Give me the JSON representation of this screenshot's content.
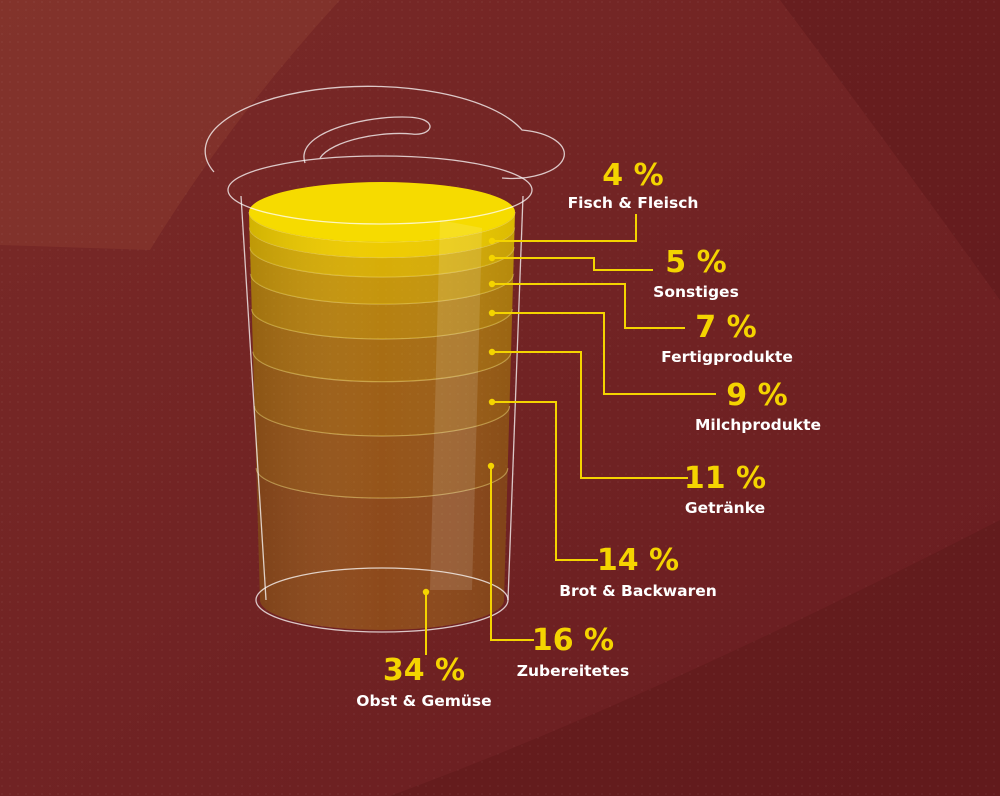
{
  "chart_data": {
    "type": "bar",
    "title": "",
    "unit": "%",
    "categories": [
      "Fisch & Fleisch",
      "Sonstiges",
      "Fertigprodukte",
      "Milchprodukte",
      "Getränke",
      "Brot & Backwaren",
      "Zubereitetes",
      "Obst & Gemüse"
    ],
    "values": [
      4,
      5,
      7,
      9,
      11,
      14,
      16,
      34
    ],
    "labels": [
      "4 %",
      "5 %",
      "7 %",
      "9 %",
      "11 %",
      "14 %",
      "16 %",
      "34 %"
    ]
  },
  "colors": {
    "background": "#6e2222",
    "accent": "#f4d400",
    "text": "#ffffff"
  }
}
